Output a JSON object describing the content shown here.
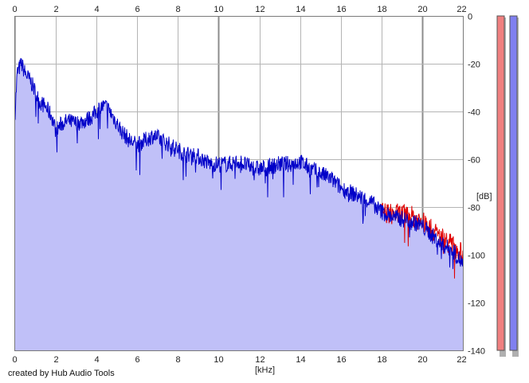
{
  "credit": "created by Hub Audio Tools",
  "chart_data": {
    "type": "area",
    "xlabel": "[kHz]",
    "ylabel": "[dB]",
    "xlim": [
      0,
      22
    ],
    "ylim": [
      -140,
      0
    ],
    "x_ticks": [
      0,
      2,
      4,
      6,
      8,
      10,
      12,
      14,
      16,
      18,
      20,
      22
    ],
    "y_ticks": [
      0,
      -20,
      -40,
      -60,
      -80,
      -100,
      -120,
      -140
    ],
    "grid": true,
    "colors": {
      "fill": "#c0c0f8",
      "left_channel": "#e00000",
      "right_channel": "#0000c8",
      "grid": "#b4b4b4",
      "grid_major": "#8c8c8c",
      "meter_left": "#f08080",
      "meter_right": "#8080f0"
    },
    "series": [
      {
        "x": [
          0,
          0.1,
          0.3,
          0.5,
          0.8,
          1.0,
          1.2,
          1.5,
          1.8,
          2.0,
          2.3,
          2.6,
          3.0,
          3.4,
          3.8,
          4.2,
          4.5,
          4.8,
          5.2,
          5.6,
          6.0,
          6.4,
          6.8,
          7.2,
          7.6,
          8.0,
          8.4,
          8.8,
          9.2,
          9.6,
          10.0,
          10.5,
          11.0,
          11.5,
          12.0,
          12.5,
          13.0,
          13.5,
          14.0,
          14.5,
          15.0,
          15.5,
          16.0,
          16.5,
          17.0,
          17.5,
          18.0,
          18.5,
          19.0,
          19.5,
          20.0,
          20.5,
          21.0,
          21.5,
          22.0
        ],
        "values": [
          -40,
          -24,
          -20,
          -24,
          -28,
          -32,
          -36,
          -38,
          -42,
          -48,
          -45,
          -44,
          -45,
          -44,
          -42,
          -38,
          -38,
          -42,
          -48,
          -52,
          -54,
          -52,
          -50,
          -52,
          -54,
          -56,
          -58,
          -58,
          -60,
          -62,
          -62,
          -62,
          -61,
          -63,
          -64,
          -63,
          -62,
          -62,
          -61,
          -64,
          -66,
          -68,
          -72,
          -74,
          -76,
          -78,
          -82,
          -84,
          -85,
          -86,
          -88,
          -92,
          -96,
          -98,
          -104
        ]
      },
      {
        "x": [
          18.0,
          18.5,
          19.0,
          19.5,
          20.0,
          20.5,
          21.0,
          21.5,
          22.0
        ],
        "values": [
          -82,
          -83,
          -83,
          -84,
          -86,
          -90,
          -93,
          -96,
          -100
        ]
      }
    ]
  }
}
